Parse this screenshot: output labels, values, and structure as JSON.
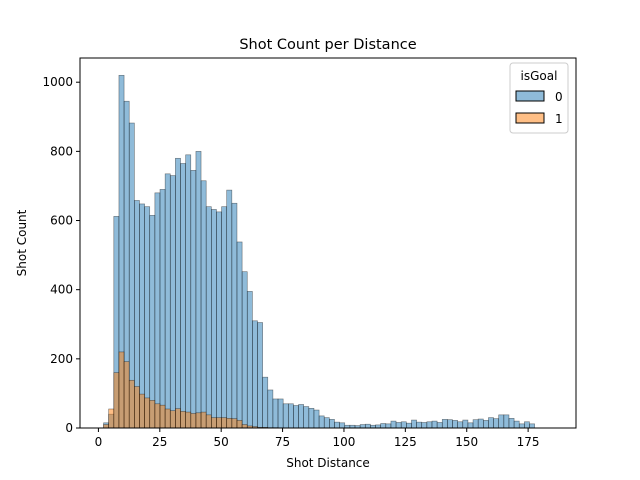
{
  "chart_data": {
    "type": "bar",
    "title": "Shot Count per Distance",
    "xlabel": "Shot Distance",
    "ylabel": "Shot Count",
    "xlim": [
      -7.5,
      194.5
    ],
    "ylim": [
      0,
      1070
    ],
    "xticks": [
      0,
      25,
      50,
      75,
      100,
      125,
      150,
      175
    ],
    "yticks": [
      0,
      200,
      400,
      600,
      800,
      1000
    ],
    "bin_width": 2.09,
    "bin_start": 0,
    "legend": {
      "title": "isGoal",
      "placement": "top-right"
    },
    "series": [
      {
        "name": "0",
        "color": "#1f77b4",
        "values": [
          0,
          15,
          40,
          612,
          1020,
          945,
          882,
          658,
          648,
          640,
          615,
          680,
          690,
          735,
          730,
          780,
          765,
          790,
          745,
          800,
          715,
          640,
          632,
          625,
          640,
          688,
          650,
          538,
          452,
          395,
          310,
          305,
          147,
          110,
          84,
          84,
          70,
          70,
          65,
          68,
          62,
          57,
          52,
          35,
          30,
          25,
          17,
          15,
          8,
          8,
          7,
          10,
          11,
          8,
          9,
          13,
          12,
          20,
          16,
          18,
          14,
          23,
          17,
          16,
          18,
          20,
          16,
          25,
          24,
          22,
          18,
          23,
          15,
          24,
          26,
          22,
          30,
          27,
          38,
          38,
          28,
          20,
          12,
          18,
          12
        ]
      },
      {
        "name": "1",
        "color": "#ff7f0e",
        "values": [
          0,
          10,
          55,
          160,
          220,
          192,
          138,
          120,
          98,
          87,
          80,
          70,
          66,
          55,
          50,
          56,
          48,
          46,
          42,
          44,
          46,
          38,
          30,
          30,
          30,
          28,
          27,
          22,
          10,
          6,
          4,
          2,
          2,
          1,
          1,
          0,
          0,
          0,
          0,
          0,
          0,
          0,
          0,
          0,
          0,
          0,
          0,
          0,
          0,
          0,
          0,
          0,
          0,
          0,
          0,
          0,
          0,
          0,
          0,
          0,
          0,
          0,
          0,
          0,
          0,
          0,
          0,
          0,
          0,
          0,
          0,
          0,
          0,
          0,
          0,
          0,
          0,
          0,
          0,
          0,
          0,
          0,
          0,
          0,
          0
        ]
      }
    ]
  }
}
